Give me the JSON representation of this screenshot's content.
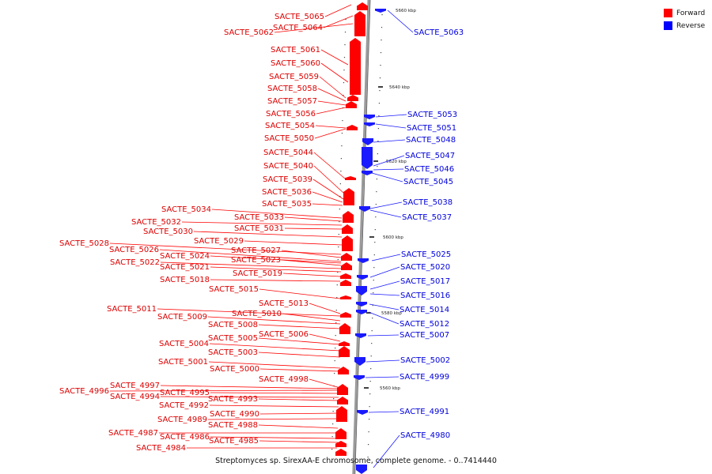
{
  "caption": "Streptomyces sp. SirexAA-E chromosome, complete genome. - 0..7414440",
  "legend": [
    {
      "label": "Forward",
      "color": "#ff0000"
    },
    {
      "label": "Reverse",
      "color": "#0000ff"
    }
  ],
  "colors": {
    "forward": "#ff0000",
    "reverse": "#1a1aff",
    "axis": "#888888"
  },
  "ticks": [
    {
      "label": "5660 kbp"
    },
    {
      "label": "5640 kbp"
    },
    {
      "label": "5620 kbp"
    },
    {
      "label": "5600 kbp"
    },
    {
      "label": "5580 kbp"
    },
    {
      "label": "5560 kbp"
    }
  ],
  "forward_genes": [
    {
      "label": "SACTE_5065"
    },
    {
      "label": "SACTE_5064"
    },
    {
      "label": "SACTE_5062"
    },
    {
      "label": "SACTE_5061"
    },
    {
      "label": "SACTE_5060"
    },
    {
      "label": "SACTE_5059"
    },
    {
      "label": "SACTE_5058"
    },
    {
      "label": "SACTE_5057"
    },
    {
      "label": "SACTE_5056"
    },
    {
      "label": "SACTE_5054"
    },
    {
      "label": "SACTE_5050"
    },
    {
      "label": "SACTE_5044"
    },
    {
      "label": "SACTE_5040"
    },
    {
      "label": "SACTE_5039"
    },
    {
      "label": "SACTE_5036"
    },
    {
      "label": "SACTE_5035"
    },
    {
      "label": "SACTE_5034"
    },
    {
      "label": "SACTE_5033"
    },
    {
      "label": "SACTE_5032"
    },
    {
      "label": "SACTE_5031"
    },
    {
      "label": "SACTE_5030"
    },
    {
      "label": "SACTE_5029"
    },
    {
      "label": "SACTE_5028"
    },
    {
      "label": "SACTE_5027"
    },
    {
      "label": "SACTE_5026"
    },
    {
      "label": "SACTE_5024"
    },
    {
      "label": "SACTE_5023"
    },
    {
      "label": "SACTE_5022"
    },
    {
      "label": "SACTE_5021"
    },
    {
      "label": "SACTE_5019"
    },
    {
      "label": "SACTE_5018"
    },
    {
      "label": "SACTE_5015"
    },
    {
      "label": "SACTE_5013"
    },
    {
      "label": "SACTE_5011"
    },
    {
      "label": "SACTE_5010"
    },
    {
      "label": "SACTE_5009"
    },
    {
      "label": "SACTE_5008"
    },
    {
      "label": "SACTE_5006"
    },
    {
      "label": "SACTE_5005"
    },
    {
      "label": "SACTE_5004"
    },
    {
      "label": "SACTE_5003"
    },
    {
      "label": "SACTE_5001"
    },
    {
      "label": "SACTE_5000"
    },
    {
      "label": "SACTE_4998"
    },
    {
      "label": "SACTE_4997"
    },
    {
      "label": "SACTE_4996"
    },
    {
      "label": "SACTE_4995"
    },
    {
      "label": "SACTE_4994"
    },
    {
      "label": "SACTE_4993"
    },
    {
      "label": "SACTE_4992"
    },
    {
      "label": "SACTE_4990"
    },
    {
      "label": "SACTE_4989"
    },
    {
      "label": "SACTE_4988"
    },
    {
      "label": "SACTE_4987"
    },
    {
      "label": "SACTE_4986"
    },
    {
      "label": "SACTE_4985"
    },
    {
      "label": "SACTE_4984"
    }
  ],
  "reverse_genes": [
    {
      "label": "SACTE_5063"
    },
    {
      "label": "SACTE_5053"
    },
    {
      "label": "SACTE_5051"
    },
    {
      "label": "SACTE_5048"
    },
    {
      "label": "SACTE_5047"
    },
    {
      "label": "SACTE_5046"
    },
    {
      "label": "SACTE_5045"
    },
    {
      "label": "SACTE_5038"
    },
    {
      "label": "SACTE_5037"
    },
    {
      "label": "SACTE_5025"
    },
    {
      "label": "SACTE_5020"
    },
    {
      "label": "SACTE_5017"
    },
    {
      "label": "SACTE_5016"
    },
    {
      "label": "SACTE_5014"
    },
    {
      "label": "SACTE_5012"
    },
    {
      "label": "SACTE_5007"
    },
    {
      "label": "SACTE_5002"
    },
    {
      "label": "SACTE_4999"
    },
    {
      "label": "SACTE_4991"
    },
    {
      "label": "SACTE_4980"
    }
  ]
}
